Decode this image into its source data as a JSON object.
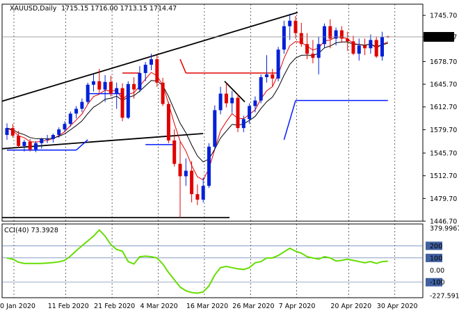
{
  "chart_data": [
    {
      "type": "candlestick",
      "panel": "main",
      "title": "XAUUSD,Daily",
      "ohlc_header": "1715.15 1716.00 1713.15 1714.47",
      "current_price_label": "1714.47",
      "current_price": 1714.47,
      "ylim": [
        1446.7,
        1762
      ],
      "y_ticks": [
        "1745.70",
        "1714.47",
        "1678.70",
        "1645.70",
        "1612.70",
        "1579.70",
        "1545.70",
        "1512.70",
        "1479.70",
        "1446.70"
      ],
      "y_tick_values": [
        1745.7,
        1714.47,
        1678.7,
        1645.7,
        1612.7,
        1579.7,
        1545.7,
        1512.7,
        1479.7,
        1446.7
      ],
      "x_tick_labels": [
        "30 Jan 2020",
        "11 Feb 2020",
        "21 Feb 2020",
        "4 Mar 2020",
        "16 Mar 2020",
        "26 Mar 2020",
        "7 Apr 2020",
        "20 Apr 2020",
        "30 Apr 2020"
      ],
      "x_tick_index": [
        0,
        9,
        17,
        25,
        33,
        41,
        49,
        58,
        66
      ],
      "candles": [
        [
          1572,
          1589,
          1565,
          1582
        ],
        [
          1582,
          1588,
          1568,
          1571
        ],
        [
          1571,
          1578,
          1553,
          1556
        ],
        [
          1556,
          1565,
          1548,
          1562
        ],
        [
          1562,
          1566,
          1548,
          1551
        ],
        [
          1551,
          1563,
          1547,
          1560
        ],
        [
          1560,
          1568,
          1552,
          1566
        ],
        [
          1566,
          1572,
          1560,
          1566
        ],
        [
          1566,
          1574,
          1561,
          1572
        ],
        [
          1572,
          1583,
          1568,
          1580
        ],
        [
          1580,
          1592,
          1576,
          1588
        ],
        [
          1588,
          1606,
          1584,
          1603
        ],
        [
          1603,
          1614,
          1596,
          1610
        ],
        [
          1610,
          1625,
          1605,
          1620
        ],
        [
          1620,
          1648,
          1617,
          1645
        ],
        [
          1645,
          1660,
          1635,
          1650
        ],
        [
          1650,
          1668,
          1632,
          1638
        ],
        [
          1638,
          1659,
          1620,
          1649
        ],
        [
          1649,
          1658,
          1628,
          1632
        ],
        [
          1632,
          1648,
          1610,
          1640
        ],
        [
          1640,
          1647,
          1592,
          1597
        ],
        [
          1597,
          1650,
          1595,
          1646
        ],
        [
          1646,
          1656,
          1625,
          1638
        ],
        [
          1638,
          1672,
          1634,
          1662
        ],
        [
          1662,
          1678,
          1650,
          1674
        ],
        [
          1674,
          1690,
          1666,
          1682
        ],
        [
          1682,
          1688,
          1642,
          1648
        ],
        [
          1648,
          1655,
          1614,
          1617
        ],
        [
          1617,
          1620,
          1560,
          1564
        ],
        [
          1564,
          1580,
          1526,
          1530
        ],
        [
          1530,
          1562,
          1452,
          1512
        ],
        [
          1512,
          1538,
          1498,
          1520
        ],
        [
          1520,
          1534,
          1474,
          1486
        ],
        [
          1486,
          1500,
          1470,
          1478
        ],
        [
          1478,
          1510,
          1474,
          1498
        ],
        [
          1498,
          1560,
          1495,
          1555
        ],
        [
          1555,
          1615,
          1550,
          1608
        ],
        [
          1608,
          1642,
          1602,
          1632
        ],
        [
          1632,
          1648,
          1612,
          1618
        ],
        [
          1618,
          1636,
          1604,
          1626
        ],
        [
          1626,
          1632,
          1576,
          1582
        ],
        [
          1582,
          1600,
          1576,
          1595
        ],
        [
          1595,
          1618,
          1588,
          1614
        ],
        [
          1614,
          1628,
          1605,
          1622
        ],
        [
          1622,
          1660,
          1618,
          1656
        ],
        [
          1656,
          1688,
          1648,
          1660
        ],
        [
          1660,
          1668,
          1642,
          1654
        ],
        [
          1654,
          1700,
          1650,
          1696
        ],
        [
          1696,
          1738,
          1690,
          1730
        ],
        [
          1730,
          1748,
          1710,
          1738
        ],
        [
          1738,
          1745,
          1712,
          1720
        ],
        [
          1720,
          1735,
          1700,
          1704
        ],
        [
          1704,
          1720,
          1682,
          1690
        ],
        [
          1690,
          1710,
          1676,
          1684
        ],
        [
          1684,
          1715,
          1660,
          1704
        ],
        [
          1704,
          1734,
          1698,
          1730
        ],
        [
          1730,
          1740,
          1698,
          1712
        ],
        [
          1712,
          1728,
          1702,
          1724
        ],
        [
          1724,
          1730,
          1706,
          1712
        ],
        [
          1712,
          1722,
          1694,
          1708
        ],
        [
          1708,
          1716,
          1688,
          1690
        ],
        [
          1690,
          1712,
          1680,
          1702
        ],
        [
          1702,
          1712,
          1688,
          1698
        ],
        [
          1698,
          1718,
          1690,
          1710
        ],
        [
          1710,
          1715,
          1684,
          1686
        ],
        [
          1686,
          1722,
          1680,
          1714
        ],
        [
          1715.15,
          1716,
          1713.15,
          1714.47
        ]
      ],
      "indicators": {
        "fast_average_color": "#e00000",
        "slow_average_color": "#000000",
        "support_color": "#001aff",
        "resistance_color": "#e00000",
        "trendline_color": "#000000"
      },
      "colors": {
        "bull": "#0020d8",
        "bear": "#e00000"
      },
      "grid": true
    },
    {
      "type": "line",
      "panel": "indicator",
      "title": "CCI(40) 73.3928",
      "indicator": "CCI",
      "period": 40,
      "current_value": 73.3928,
      "ylim": [
        -227.591,
        379.9967
      ],
      "y_ticks": [
        "379.9967",
        "200",
        "100",
        "0.00",
        "-100",
        "-227.591"
      ],
      "y_tick_values": [
        379.9967,
        200,
        100,
        0,
        -100,
        -227.591
      ],
      "levels": [
        200,
        100,
        -100
      ],
      "series": [
        {
          "color": "#66dd00",
          "values": [
            100,
            90,
            65,
            55,
            55,
            55,
            55,
            58,
            62,
            68,
            80,
            115,
            160,
            200,
            240,
            280,
            330,
            280,
            210,
            170,
            155,
            70,
            50,
            110,
            115,
            110,
            100,
            50,
            -20,
            -80,
            -140,
            -170,
            -185,
            -190,
            -180,
            -130,
            -40,
            20,
            30,
            20,
            10,
            5,
            20,
            60,
            70,
            100,
            100,
            120,
            150,
            180,
            155,
            140,
            110,
            100,
            90,
            110,
            100,
            75,
            80,
            90,
            80,
            70,
            60,
            70,
            55,
            70,
            73.39
          ]
        }
      ],
      "grid": true
    }
  ]
}
